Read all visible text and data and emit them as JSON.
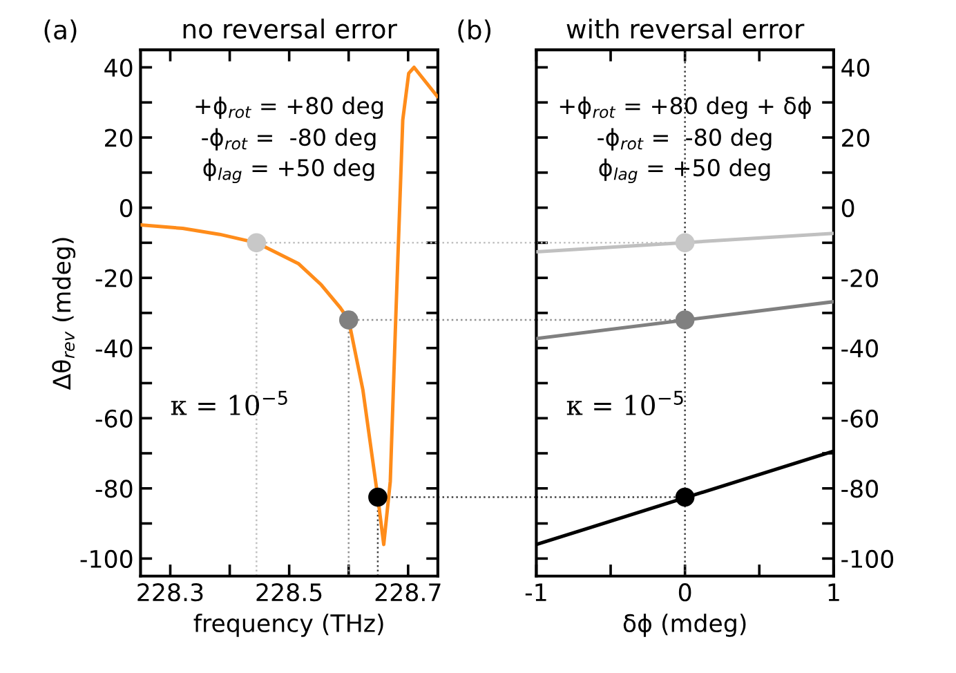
{
  "chart_data": [
    {
      "type": "line",
      "title": "no reversal error",
      "xlabel": "frequency (THz)",
      "ylabel": "Δθ$_{rev}$ (mdeg)",
      "xlim": [
        228.25,
        228.75
      ],
      "xticks": [
        228.3,
        {
          "value": 228.4,
          "label": null
        },
        228.5,
        {
          "value": 228.6,
          "label": null
        },
        228.7
      ],
      "ylim": [
        -105,
        45
      ],
      "yticks": [
        {
          "value": -100,
          "label": "-100"
        },
        {
          "value": -90,
          "label": null
        },
        {
          "value": -80,
          "label": "-80"
        },
        {
          "value": -70,
          "label": null
        },
        {
          "value": -60,
          "label": "-60"
        },
        {
          "value": -50,
          "label": null
        },
        {
          "value": -40,
          "label": "-40"
        },
        {
          "value": -30,
          "label": null
        },
        {
          "value": -20,
          "label": "-20"
        },
        {
          "value": -10,
          "label": null
        },
        0,
        {
          "value": 10,
          "label": null
        },
        20,
        {
          "value": 30,
          "label": null
        },
        40
      ],
      "series": [
        {
          "color": "#ff8c1a",
          "x": [
            228.25,
            228.321,
            228.383,
            228.445,
            228.516,
            228.554,
            228.586,
            228.6,
            228.624,
            228.649,
            228.659,
            228.67,
            228.679,
            228.691,
            228.701,
            228.71,
            228.749
          ],
          "values": [
            -4.9,
            -5.9,
            -7.6,
            -10,
            -16,
            -22,
            -28.5,
            -32,
            -52,
            -82.5,
            -96,
            -78,
            -32.5,
            25,
            38.3,
            40,
            31.7
          ]
        },
        {
          "type": "scatter",
          "color": "#c8c8c8",
          "x": [
            228.445
          ],
          "values": [
            -10
          ]
        },
        {
          "type": "scatter",
          "color": "#808080",
          "x": [
            228.6
          ],
          "values": [
            -32
          ]
        },
        {
          "type": "scatter",
          "color": "#000000",
          "x": [
            228.649
          ],
          "values": [
            -82.5
          ]
        }
      ],
      "ref_lines": [
        {
          "axis": "x",
          "value": 228.445,
          "color": "#c0c0c0",
          "line_style": "dotted"
        },
        {
          "axis": "x",
          "value": 228.6,
          "color": "#909090",
          "line_style": "dotted"
        },
        {
          "axis": "x",
          "value": 228.649,
          "color": "#404040",
          "line_style": "dotted"
        },
        {
          "axis": "y",
          "value": -10,
          "color": "#c0c0c0",
          "line_style": "dotted"
        },
        {
          "axis": "y",
          "value": -32,
          "color": "#909090",
          "line_style": "dotted"
        },
        {
          "axis": "y",
          "value": -82.5,
          "color": "#404040",
          "line_style": "dotted"
        }
      ],
      "annotations": [
        "(a)",
        "+ϕ$_{rot}$ = +80 deg",
        "-ϕ$_{rot}$ =  -80 deg",
        "ϕ$_{lag}$ = +50 deg",
        "κ = 10$^{−5}$"
      ],
      "grid": false
    },
    {
      "type": "line",
      "title": "with reversal error",
      "xlabel": "δϕ (mdeg)",
      "xlim": [
        -1,
        1
      ],
      "xticks": [
        -1,
        {
          "value": -0.5,
          "label": null
        },
        0,
        {
          "value": 0.5,
          "label": null
        },
        1
      ],
      "ylim": [
        -105,
        45
      ],
      "yticks": [
        {
          "value": -100,
          "label": "-100"
        },
        {
          "value": -90,
          "label": null
        },
        {
          "value": -80,
          "label": "-80"
        },
        {
          "value": -70,
          "label": null
        },
        {
          "value": -60,
          "label": "-60"
        },
        {
          "value": -50,
          "label": null
        },
        {
          "value": -40,
          "label": "-40"
        },
        {
          "value": -30,
          "label": null
        },
        {
          "value": -20,
          "label": "-20"
        },
        {
          "value": -10,
          "label": null
        },
        0,
        {
          "value": 10,
          "label": null
        },
        20,
        {
          "value": 30,
          "label": null
        },
        40
      ],
      "series": [
        {
          "color": "#c0c0c0",
          "x": [
            -1,
            1
          ],
          "values": [
            -12.6,
            -7.3
          ]
        },
        {
          "color": "#808080",
          "x": [
            -1,
            1
          ],
          "values": [
            -37.3,
            -26.8
          ]
        },
        {
          "color": "#000000",
          "x": [
            -1,
            1
          ],
          "values": [
            -96,
            -69.4
          ]
        },
        {
          "type": "scatter",
          "color": "#c8c8c8",
          "x": [
            0
          ],
          "values": [
            -10
          ]
        },
        {
          "type": "scatter",
          "color": "#808080",
          "x": [
            0
          ],
          "values": [
            -32
          ]
        },
        {
          "type": "scatter",
          "color": "#000000",
          "x": [
            0
          ],
          "values": [
            -82.5
          ]
        }
      ],
      "ref_lines": [
        {
          "axis": "x",
          "value": 0,
          "color": "#404040",
          "line_style": "dotted"
        },
        {
          "axis": "y",
          "value": -10,
          "color": "#c0c0c0",
          "line_style": "dotted"
        },
        {
          "axis": "y",
          "value": -32,
          "color": "#909090",
          "line_style": "dotted"
        },
        {
          "axis": "y",
          "value": -82.5,
          "color": "#404040",
          "line_style": "dotted"
        }
      ],
      "annotations": [
        "(b)",
        "+ϕ$_{rot}$ = +80 deg + δϕ",
        "-ϕ$_{rot}$ =  -80 deg",
        "ϕ$_{lag}$ = +50 deg",
        "κ = 10$^{−5}$"
      ],
      "grid": false
    }
  ]
}
